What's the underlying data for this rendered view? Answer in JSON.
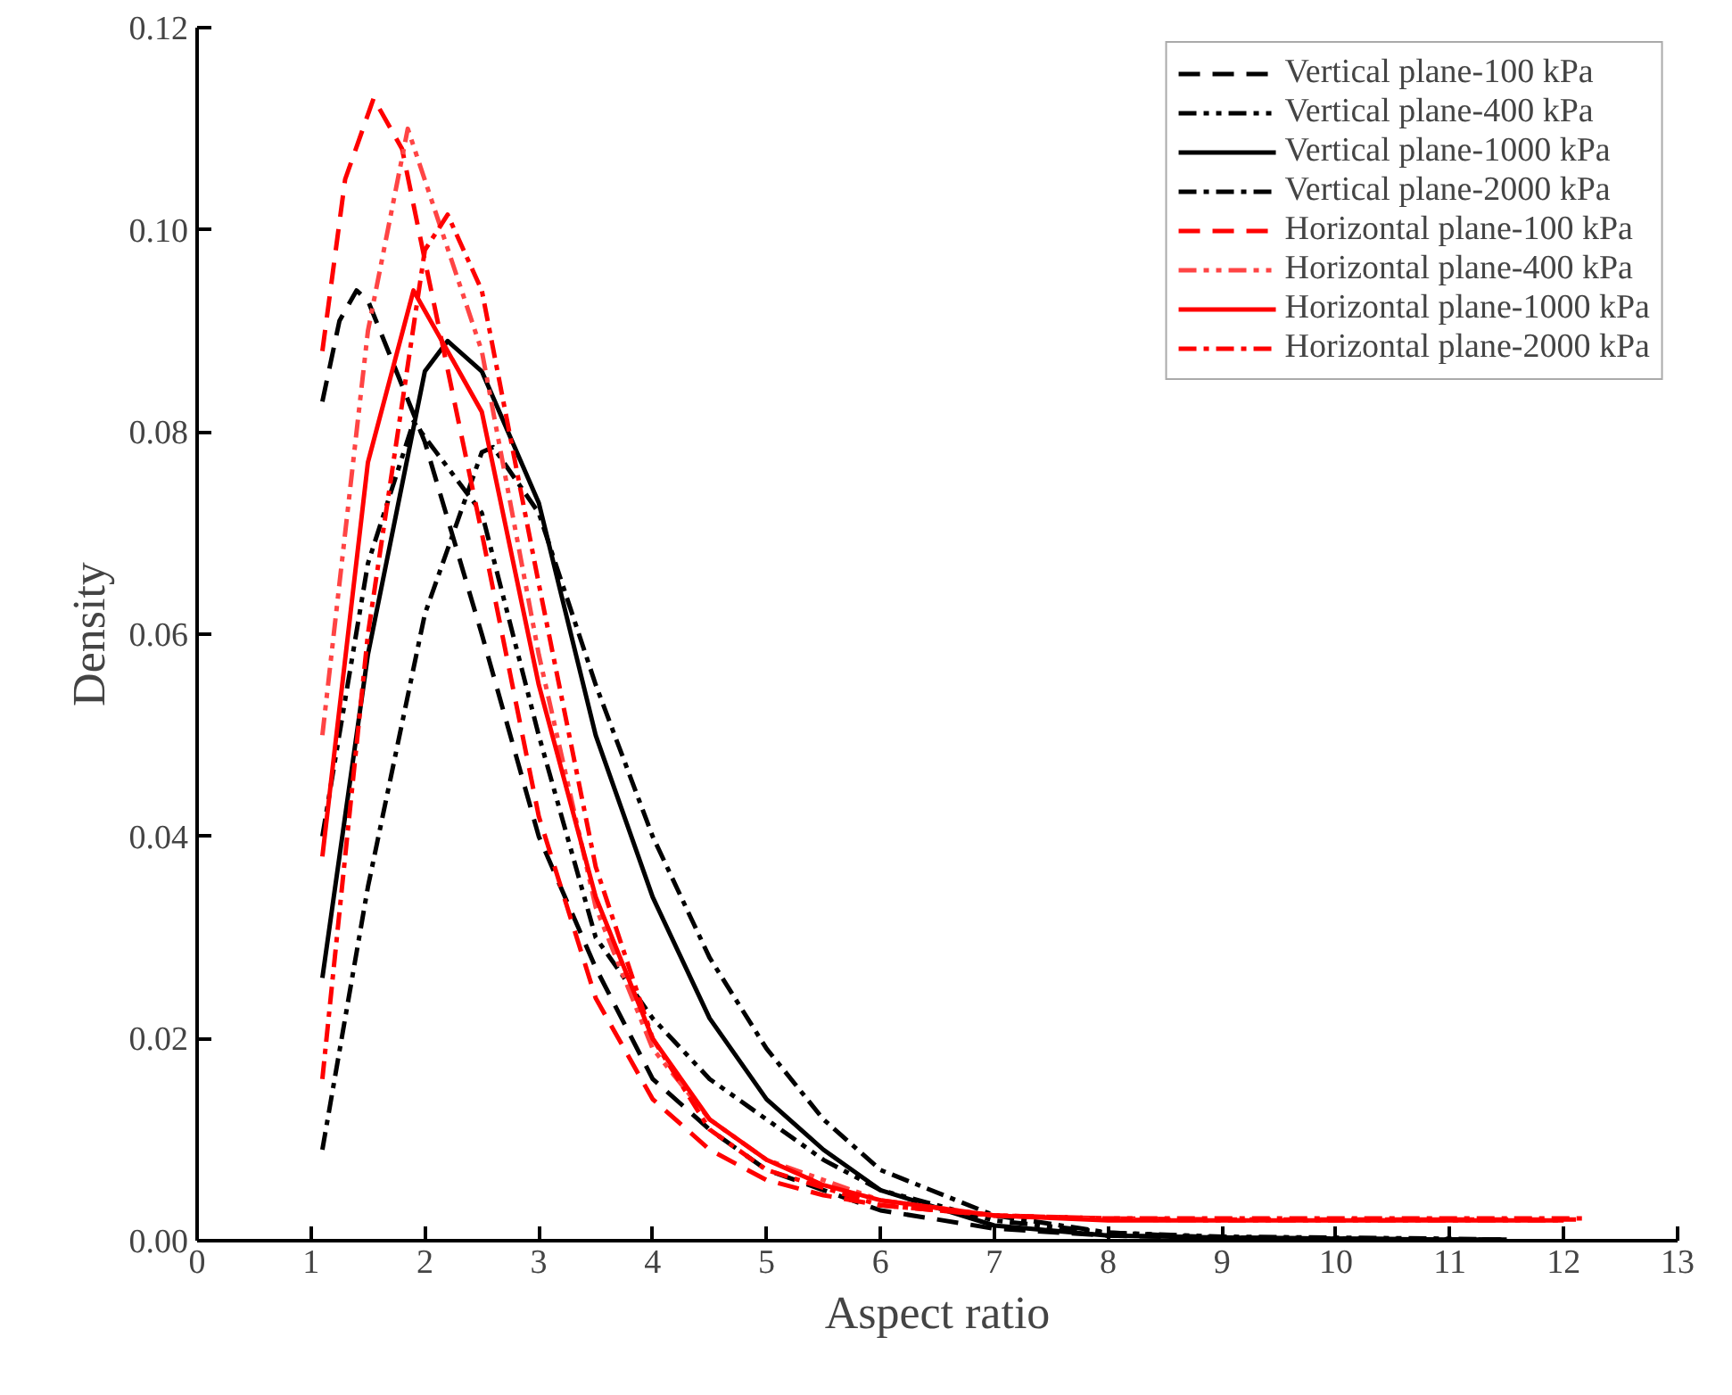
{
  "chart_data": {
    "type": "line",
    "xlabel": "Aspect ratio",
    "ylabel": "Density",
    "xlim": [
      0,
      13
    ],
    "ylim": [
      0,
      0.12
    ],
    "xticks": [
      0,
      1,
      2,
      3,
      4,
      5,
      6,
      7,
      8,
      9,
      10,
      11,
      12,
      13
    ],
    "yticks": [
      {
        "value": 0,
        "label": "0.00"
      },
      {
        "value": 0.02,
        "label": "0.02"
      },
      {
        "value": 0.04,
        "label": "0.04"
      },
      {
        "value": 0.06,
        "label": "0.06"
      },
      {
        "value": 0.08,
        "label": "0.08"
      },
      {
        "value": 0.1,
        "label": "0.10"
      },
      {
        "value": 0.12,
        "label": "0.12"
      }
    ],
    "grid": false,
    "legend": "top right",
    "marker": "none",
    "series": [
      {
        "name": "Vertical plane-100 kPa",
        "color": "#000000",
        "line_style": "dashed",
        "x": [
          1.1,
          1.25,
          1.4,
          1.5,
          2,
          2.5,
          3,
          3.5,
          4,
          4.5,
          5,
          5.5,
          6,
          7,
          8,
          9,
          10,
          11,
          11.5
        ],
        "values": [
          0.083,
          0.091,
          0.094,
          0.093,
          0.079,
          0.06,
          0.04,
          0.027,
          0.016,
          0.011,
          0.007,
          0.005,
          0.003,
          0.0012,
          0.0005,
          0.0003,
          0.0002,
          0.0001,
          0.0001
        ]
      },
      {
        "name": "Vertical plane-400 kPa",
        "color": "#000000",
        "line_style": "dashdotdot",
        "x": [
          1.1,
          1.5,
          1.9,
          2.5,
          3,
          3.5,
          4,
          4.5,
          5,
          5.5,
          6,
          7,
          8,
          9,
          10,
          11,
          11.5
        ],
        "values": [
          0.04,
          0.067,
          0.081,
          0.072,
          0.05,
          0.03,
          0.022,
          0.016,
          0.012,
          0.008,
          0.005,
          0.002,
          0.0008,
          0.0004,
          0.0003,
          0.0002,
          0.0001
        ]
      },
      {
        "name": "Vertical plane-1000 kPa",
        "color": "#000000",
        "line_style": "solid",
        "x": [
          1.1,
          1.5,
          2,
          2.2,
          2.5,
          3,
          3.5,
          4,
          4.5,
          5,
          5.5,
          6,
          7,
          8,
          9,
          10,
          11,
          11.5
        ],
        "values": [
          0.026,
          0.058,
          0.086,
          0.089,
          0.086,
          0.073,
          0.05,
          0.034,
          0.022,
          0.014,
          0.009,
          0.005,
          0.0015,
          0.0005,
          0.0003,
          0.0002,
          0.0001,
          0.0001
        ]
      },
      {
        "name": "Vertical plane-2000 kPa",
        "color": "#000000",
        "line_style": "dashdot",
        "x": [
          1.1,
          1.5,
          2,
          2.5,
          2.6,
          3,
          3.5,
          4,
          4.5,
          5,
          5.5,
          6,
          7,
          8,
          9,
          10,
          11,
          11.5
        ],
        "values": [
          0.009,
          0.035,
          0.062,
          0.078,
          0.0785,
          0.072,
          0.055,
          0.04,
          0.028,
          0.019,
          0.012,
          0.007,
          0.0025,
          0.0008,
          0.0003,
          0.0002,
          0.0001,
          0.0001
        ]
      },
      {
        "name": "Horizontal plane-100 kPa",
        "color": "#ff0000",
        "line_style": "dashed",
        "x": [
          1.1,
          1.3,
          1.55,
          1.8,
          2,
          2.5,
          3,
          3.5,
          4,
          4.5,
          5,
          5.5,
          6,
          7,
          8,
          9,
          10,
          11,
          12.2
        ],
        "values": [
          0.088,
          0.105,
          0.113,
          0.108,
          0.097,
          0.07,
          0.042,
          0.024,
          0.014,
          0.009,
          0.006,
          0.0045,
          0.0035,
          0.0025,
          0.0022,
          0.0021,
          0.0021,
          0.0021,
          0.0021
        ]
      },
      {
        "name": "Horizontal plane-400 kPa",
        "color": "#ff4444",
        "line_style": "dashdotdot",
        "x": [
          1.1,
          1.5,
          1.85,
          2.5,
          3,
          3.5,
          4,
          4.5,
          5,
          6,
          7,
          8,
          9,
          10,
          11,
          12
        ],
        "values": [
          0.05,
          0.09,
          0.11,
          0.088,
          0.058,
          0.033,
          0.019,
          0.012,
          0.008,
          0.004,
          0.0025,
          0.0021,
          0.002,
          0.002,
          0.002,
          0.002
        ]
      },
      {
        "name": "Horizontal plane-1000 kPa",
        "color": "#ff0000",
        "line_style": "solid",
        "x": [
          1.1,
          1.5,
          1.9,
          2.5,
          3,
          3.5,
          4,
          4.5,
          5,
          5.5,
          6,
          7,
          8,
          9,
          10,
          11,
          12
        ],
        "values": [
          0.038,
          0.077,
          0.094,
          0.082,
          0.055,
          0.034,
          0.02,
          0.012,
          0.008,
          0.0055,
          0.004,
          0.0025,
          0.002,
          0.002,
          0.002,
          0.002,
          0.002
        ]
      },
      {
        "name": "Horizontal plane-2000 kPa",
        "color": "#ff0000",
        "line_style": "dashdot",
        "x": [
          1.1,
          1.5,
          2,
          2.2,
          2.5,
          3,
          3.5,
          4,
          4.5,
          5,
          6,
          7,
          8,
          9,
          10,
          11,
          12.2
        ],
        "values": [
          0.016,
          0.06,
          0.098,
          0.1015,
          0.094,
          0.065,
          0.037,
          0.02,
          0.011,
          0.007,
          0.0035,
          0.0025,
          0.0022,
          0.0022,
          0.0022,
          0.0022,
          0.0022
        ]
      }
    ]
  }
}
